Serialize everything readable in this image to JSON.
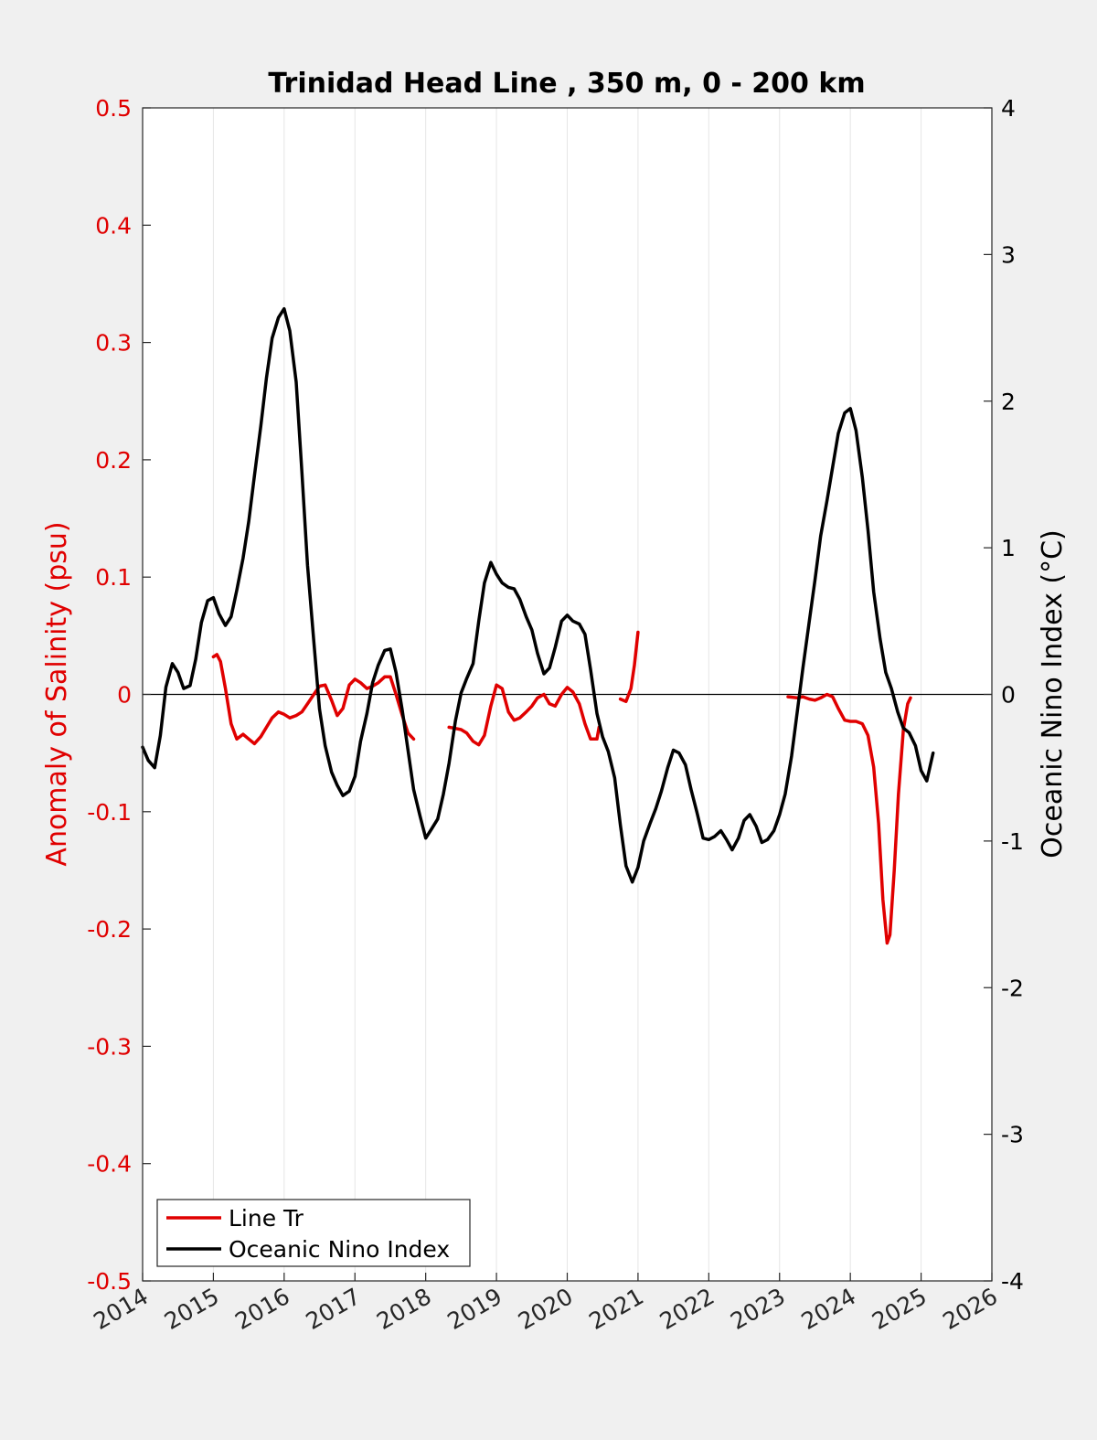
{
  "chart_data": {
    "type": "line",
    "title": "Trinidad Head Line , 350 m, 0 - 200 km",
    "ylabel_left": "Anomaly of Salinity (psu)",
    "ylabel_right": "Oceanic Nino Index (°C)",
    "xlim": [
      2014,
      2026
    ],
    "ylim_left": [
      -0.5,
      0.5
    ],
    "ylim_right": [
      -4,
      4
    ],
    "x_ticks": [
      "2014",
      "2015",
      "2016",
      "2017",
      "2018",
      "2019",
      "2020",
      "2021",
      "2022",
      "2023",
      "2024",
      "2025",
      "2026"
    ],
    "y_ticks_left": [
      "0.5",
      "0.4",
      "0.3",
      "0.2",
      "0.1",
      "0",
      "-0.1",
      "-0.2",
      "-0.3",
      "-0.4",
      "-0.5"
    ],
    "y_ticks_right": [
      "4",
      "3",
      "2",
      "1",
      "0",
      "-1",
      "-2",
      "-3",
      "-4"
    ],
    "grid": "vertical",
    "legend_position": "bottom-left",
    "colors": {
      "salinity": "#e00000",
      "oni": "#000000"
    },
    "series": [
      {
        "name": "Line Tr",
        "axis": "left",
        "segments": [
          [
            [
              2015.0,
              0.032
            ],
            [
              2015.05,
              0.034
            ],
            [
              2015.1,
              0.028
            ],
            [
              2015.17,
              0.005
            ],
            [
              2015.25,
              -0.025
            ],
            [
              2015.33,
              -0.038
            ],
            [
              2015.42,
              -0.034
            ],
            [
              2015.5,
              -0.038
            ],
            [
              2015.58,
              -0.042
            ],
            [
              2015.67,
              -0.036
            ],
            [
              2015.75,
              -0.028
            ],
            [
              2015.83,
              -0.02
            ],
            [
              2015.92,
              -0.015
            ],
            [
              2016.0,
              -0.017
            ],
            [
              2016.08,
              -0.02
            ],
            [
              2016.17,
              -0.018
            ],
            [
              2016.25,
              -0.015
            ],
            [
              2016.33,
              -0.008
            ],
            [
              2016.42,
              0.0
            ],
            [
              2016.5,
              0.007
            ],
            [
              2016.58,
              0.008
            ],
            [
              2016.67,
              -0.005
            ],
            [
              2016.75,
              -0.018
            ],
            [
              2016.83,
              -0.012
            ],
            [
              2016.92,
              0.008
            ],
            [
              2017.0,
              0.013
            ],
            [
              2017.08,
              0.01
            ],
            [
              2017.17,
              0.005
            ],
            [
              2017.25,
              0.007
            ],
            [
              2017.33,
              0.01
            ],
            [
              2017.42,
              0.015
            ],
            [
              2017.5,
              0.015
            ],
            [
              2017.58,
              0.0
            ],
            [
              2017.67,
              -0.018
            ],
            [
              2017.75,
              -0.033
            ],
            [
              2017.83,
              -0.038
            ]
          ],
          [
            [
              2018.33,
              -0.028
            ],
            [
              2018.42,
              -0.029
            ],
            [
              2018.5,
              -0.03
            ],
            [
              2018.58,
              -0.033
            ],
            [
              2018.67,
              -0.04
            ],
            [
              2018.75,
              -0.043
            ],
            [
              2018.83,
              -0.035
            ],
            [
              2018.92,
              -0.01
            ],
            [
              2019.0,
              0.008
            ],
            [
              2019.08,
              0.005
            ],
            [
              2019.17,
              -0.015
            ],
            [
              2019.25,
              -0.022
            ],
            [
              2019.33,
              -0.02
            ],
            [
              2019.42,
              -0.015
            ],
            [
              2019.5,
              -0.01
            ],
            [
              2019.58,
              -0.003
            ],
            [
              2019.67,
              0.0
            ],
            [
              2019.75,
              -0.008
            ],
            [
              2019.83,
              -0.01
            ],
            [
              2019.92,
              0.0
            ],
            [
              2020.0,
              0.006
            ],
            [
              2020.08,
              0.002
            ],
            [
              2020.17,
              -0.008
            ],
            [
              2020.25,
              -0.025
            ],
            [
              2020.33,
              -0.038
            ],
            [
              2020.42,
              -0.038
            ],
            [
              2020.45,
              -0.028
            ]
          ],
          [
            [
              2020.75,
              -0.004
            ],
            [
              2020.83,
              -0.006
            ],
            [
              2020.9,
              0.005
            ],
            [
              2020.95,
              0.025
            ],
            [
              2021.0,
              0.053
            ]
          ],
          [
            [
              2023.12,
              -0.002
            ],
            [
              2023.25,
              -0.003
            ],
            [
              2023.33,
              -0.002
            ],
            [
              2023.42,
              -0.004
            ],
            [
              2023.5,
              -0.005
            ],
            [
              2023.58,
              -0.003
            ],
            [
              2023.67,
              0.0
            ],
            [
              2023.75,
              -0.002
            ],
            [
              2023.83,
              -0.012
            ],
            [
              2023.92,
              -0.022
            ],
            [
              2024.0,
              -0.023
            ],
            [
              2024.08,
              -0.023
            ],
            [
              2024.17,
              -0.025
            ],
            [
              2024.25,
              -0.035
            ],
            [
              2024.33,
              -0.062
            ],
            [
              2024.4,
              -0.11
            ],
            [
              2024.46,
              -0.175
            ],
            [
              2024.52,
              -0.212
            ],
            [
              2024.56,
              -0.205
            ],
            [
              2024.62,
              -0.15
            ],
            [
              2024.68,
              -0.085
            ],
            [
              2024.75,
              -0.03
            ],
            [
              2024.81,
              -0.008
            ],
            [
              2024.85,
              -0.003
            ]
          ]
        ]
      },
      {
        "name": "Oceanic Nino Index",
        "axis": "right",
        "segments": [
          [
            [
              2014.0,
              -0.36
            ],
            [
              2014.08,
              -0.45
            ],
            [
              2014.17,
              -0.5
            ],
            [
              2014.25,
              -0.28
            ],
            [
              2014.33,
              0.05
            ],
            [
              2014.42,
              0.21
            ],
            [
              2014.5,
              0.15
            ],
            [
              2014.58,
              0.04
            ],
            [
              2014.67,
              0.06
            ],
            [
              2014.75,
              0.24
            ],
            [
              2014.83,
              0.49
            ],
            [
              2014.92,
              0.64
            ],
            [
              2015.0,
              0.66
            ],
            [
              2015.08,
              0.55
            ],
            [
              2015.17,
              0.47
            ],
            [
              2015.25,
              0.53
            ],
            [
              2015.33,
              0.71
            ],
            [
              2015.42,
              0.93
            ],
            [
              2015.5,
              1.18
            ],
            [
              2015.58,
              1.49
            ],
            [
              2015.67,
              1.83
            ],
            [
              2015.75,
              2.16
            ],
            [
              2015.83,
              2.43
            ],
            [
              2015.92,
              2.57
            ],
            [
              2016.0,
              2.63
            ],
            [
              2016.08,
              2.48
            ],
            [
              2016.17,
              2.13
            ],
            [
              2016.25,
              1.52
            ],
            [
              2016.33,
              0.88
            ],
            [
              2016.42,
              0.36
            ],
            [
              2016.5,
              -0.1
            ],
            [
              2016.58,
              -0.35
            ],
            [
              2016.67,
              -0.53
            ],
            [
              2016.75,
              -0.62
            ],
            [
              2016.83,
              -0.69
            ],
            [
              2016.92,
              -0.66
            ],
            [
              2017.0,
              -0.56
            ],
            [
              2017.08,
              -0.32
            ],
            [
              2017.17,
              -0.13
            ],
            [
              2017.25,
              0.08
            ],
            [
              2017.33,
              0.2
            ],
            [
              2017.42,
              0.3
            ],
            [
              2017.5,
              0.31
            ],
            [
              2017.58,
              0.15
            ],
            [
              2017.67,
              -0.11
            ],
            [
              2017.75,
              -0.38
            ],
            [
              2017.83,
              -0.65
            ],
            [
              2017.92,
              -0.83
            ],
            [
              2018.0,
              -0.98
            ],
            [
              2018.08,
              -0.92
            ],
            [
              2018.17,
              -0.85
            ],
            [
              2018.25,
              -0.68
            ],
            [
              2018.33,
              -0.47
            ],
            [
              2018.42,
              -0.18
            ],
            [
              2018.5,
              0.01
            ],
            [
              2018.58,
              0.11
            ],
            [
              2018.67,
              0.21
            ],
            [
              2018.75,
              0.5
            ],
            [
              2018.83,
              0.76
            ],
            [
              2018.92,
              0.9
            ],
            [
              2019.0,
              0.82
            ],
            [
              2019.08,
              0.76
            ],
            [
              2019.17,
              0.73
            ],
            [
              2019.25,
              0.72
            ],
            [
              2019.33,
              0.65
            ],
            [
              2019.42,
              0.53
            ],
            [
              2019.5,
              0.44
            ],
            [
              2019.58,
              0.28
            ],
            [
              2019.67,
              0.14
            ],
            [
              2019.75,
              0.18
            ],
            [
              2019.83,
              0.32
            ],
            [
              2019.92,
              0.5
            ],
            [
              2020.0,
              0.54
            ],
            [
              2020.08,
              0.5
            ],
            [
              2020.17,
              0.48
            ],
            [
              2020.25,
              0.41
            ],
            [
              2020.33,
              0.17
            ],
            [
              2020.42,
              -0.13
            ],
            [
              2020.5,
              -0.29
            ],
            [
              2020.58,
              -0.39
            ],
            [
              2020.67,
              -0.57
            ],
            [
              2020.75,
              -0.89
            ],
            [
              2020.83,
              -1.17
            ],
            [
              2020.92,
              -1.28
            ],
            [
              2021.0,
              -1.18
            ],
            [
              2021.08,
              -1.0
            ],
            [
              2021.17,
              -0.88
            ],
            [
              2021.25,
              -0.78
            ],
            [
              2021.33,
              -0.66
            ],
            [
              2021.42,
              -0.5
            ],
            [
              2021.5,
              -0.38
            ],
            [
              2021.58,
              -0.4
            ],
            [
              2021.67,
              -0.48
            ],
            [
              2021.75,
              -0.65
            ],
            [
              2021.83,
              -0.8
            ],
            [
              2021.92,
              -0.98
            ],
            [
              2022.0,
              -0.99
            ],
            [
              2022.08,
              -0.97
            ],
            [
              2022.17,
              -0.93
            ],
            [
              2022.25,
              -0.99
            ],
            [
              2022.33,
              -1.06
            ],
            [
              2022.42,
              -0.98
            ],
            [
              2022.5,
              -0.86
            ],
            [
              2022.58,
              -0.82
            ],
            [
              2022.67,
              -0.9
            ],
            [
              2022.75,
              -1.01
            ],
            [
              2022.83,
              -0.99
            ],
            [
              2022.92,
              -0.93
            ],
            [
              2023.0,
              -0.82
            ],
            [
              2023.08,
              -0.68
            ],
            [
              2023.17,
              -0.42
            ],
            [
              2023.25,
              -0.12
            ],
            [
              2023.33,
              0.18
            ],
            [
              2023.42,
              0.5
            ],
            [
              2023.5,
              0.78
            ],
            [
              2023.58,
              1.08
            ],
            [
              2023.67,
              1.32
            ],
            [
              2023.75,
              1.55
            ],
            [
              2023.83,
              1.78
            ],
            [
              2023.92,
              1.92
            ],
            [
              2024.0,
              1.95
            ],
            [
              2024.08,
              1.8
            ],
            [
              2024.17,
              1.48
            ],
            [
              2024.25,
              1.12
            ],
            [
              2024.33,
              0.7
            ],
            [
              2024.42,
              0.38
            ],
            [
              2024.5,
              0.15
            ],
            [
              2024.58,
              0.04
            ],
            [
              2024.67,
              -0.12
            ],
            [
              2024.75,
              -0.23
            ],
            [
              2024.83,
              -0.26
            ],
            [
              2024.92,
              -0.35
            ],
            [
              2025.0,
              -0.52
            ],
            [
              2025.08,
              -0.59
            ],
            [
              2025.17,
              -0.4
            ]
          ]
        ]
      }
    ]
  }
}
